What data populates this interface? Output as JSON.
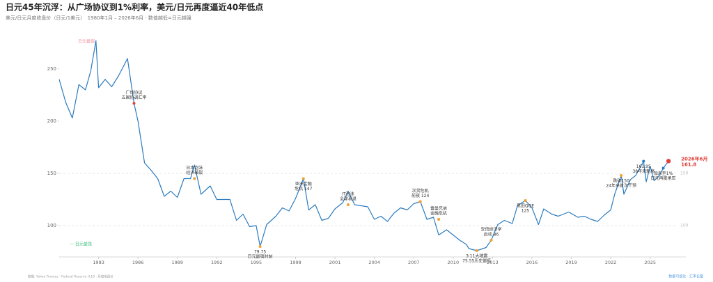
{
  "chart_data": {
    "type": "line",
    "title": "日元45年沉浮：从广场协议到1%利率，美元/日元再度逼近40年低点",
    "subtitle": "美元/日元月度收盘价（日元/1美元）　1980年1月 – 2026年6月 · 数值越低=日元越强",
    "x": [
      1980.0,
      1980.5,
      1981.0,
      1981.5,
      1982.0,
      1982.4,
      1982.8,
      1983.0,
      1983.5,
      1984.0,
      1984.5,
      1985.0,
      1985.2,
      1985.7,
      1986.0,
      1986.5,
      1987.0,
      1987.5,
      1988.0,
      1988.5,
      1989.0,
      1989.5,
      1990.0,
      1990.3,
      1990.8,
      1991.5,
      1992.0,
      1992.5,
      1993.0,
      1993.5,
      1994.0,
      1994.5,
      1995.0,
      1995.3,
      1995.8,
      1996.5,
      1997.0,
      1997.5,
      1998.0,
      1998.6,
      1999.0,
      1999.5,
      2000.0,
      2000.5,
      2001.0,
      2001.6,
      2002.0,
      2002.5,
      2003.0,
      2003.5,
      2004.0,
      2004.5,
      2005.0,
      2005.5,
      2006.0,
      2006.5,
      2007.0,
      2007.5,
      2008.0,
      2008.5,
      2008.9,
      2009.5,
      2010.0,
      2010.5,
      2011.0,
      2011.2,
      2011.8,
      2012.5,
      2012.9,
      2013.4,
      2013.9,
      2014.5,
      2014.9,
      2015.5,
      2016.0,
      2016.5,
      2016.9,
      2017.5,
      2018.0,
      2018.8,
      2019.5,
      2020.0,
      2020.5,
      2021.0,
      2021.5,
      2022.0,
      2022.3,
      2022.8,
      2023.0,
      2023.5,
      2023.9,
      2024.5,
      2024.7,
      2025.0,
      2025.3,
      2025.7,
      2026.0,
      2026.4
    ],
    "series": [
      {
        "name": "美元/日元",
        "color": "#2b7bbf",
        "values": [
          240,
          218,
          203,
          235,
          230,
          248,
          277,
          232,
          240,
          233,
          243,
          255,
          260,
          217,
          200,
          160,
          153,
          145,
          128,
          133,
          127,
          145,
          145,
          158,
          130,
          138,
          125,
          125,
          125,
          105,
          111,
          99,
          100,
          80,
          101,
          109,
          117,
          114,
          126,
          145,
          115,
          120,
          105,
          107,
          116,
          122,
          133,
          120,
          119,
          118,
          106,
          109,
          104,
          112,
          117,
          115,
          121,
          123,
          106,
          108,
          91,
          96,
          91,
          86,
          82,
          78,
          76,
          79,
          86,
          101,
          105,
          102,
          119,
          124,
          117,
          101,
          116,
          111,
          109,
          113,
          108,
          109,
          106,
          104,
          110,
          115,
          130,
          148,
          130,
          144,
          148,
          161.7,
          142,
          157,
          143,
          148,
          155,
          161.8
        ]
      }
    ],
    "xlim": [
      1980,
      2026.5
    ],
    "xticks": [
      1983,
      1986,
      1989,
      1992,
      1995,
      1998,
      2001,
      2004,
      2007,
      2010,
      2013,
      2016,
      2019,
      2022,
      2025
    ],
    "ylim": [
      70,
      280
    ],
    "yticks": [
      100,
      150,
      200,
      250
    ],
    "grid": false,
    "reference_lines": [
      {
        "value": 150,
        "label": "150"
      },
      {
        "value": 100,
        "label": "100"
      }
    ],
    "annotations": [
      {
        "x": 1985.7,
        "y": 217,
        "color": "#e0413a",
        "placement": "above",
        "text": [
          "广场协议",
          "五国协调汇率"
        ]
      },
      {
        "x": 1990.3,
        "y": 145,
        "color": "#f0a030",
        "placement": "above",
        "text": [
          "日本泡沫",
          "经济破裂"
        ]
      },
      {
        "x": 1995.3,
        "y": 80,
        "color": "#f0a030",
        "placement": "below",
        "text": [
          "79.75",
          "日元最强时刻"
        ]
      },
      {
        "x": 1998.6,
        "y": 145,
        "color": "#f0a030",
        "placement": "below",
        "text": [
          "亚洲金融",
          "危机 147"
        ]
      },
      {
        "x": 2002.0,
        "y": 120,
        "color": "#f0a030",
        "placement": "above",
        "text": [
          "IT泡沫",
          "全球衰退"
        ]
      },
      {
        "x": 2007.5,
        "y": 123,
        "color": "#f0a030",
        "placement": "above",
        "text": [
          "次贷危机",
          "前夜 124"
        ]
      },
      {
        "x": 2008.9,
        "y": 106,
        "color": "#f0a030",
        "placement": "above",
        "text": [
          "雷曼兄弟",
          "金融危机"
        ]
      },
      {
        "x": 2011.8,
        "y": 76,
        "color": "#f0a030",
        "placement": "below",
        "text": [
          "3·11大地震",
          "75.55历史最低"
        ]
      },
      {
        "x": 2012.9,
        "y": 86,
        "color": "#f0a030",
        "placement": "above",
        "text": [
          "安倍经济学",
          "启动 86"
        ]
      },
      {
        "x": 2015.5,
        "y": 124,
        "color": "#f0a030",
        "placement": "below",
        "text": [
          "黑田QQE",
          "125"
        ]
      },
      {
        "x": 2022.8,
        "y": 148,
        "color": "#f0a030",
        "placement": "below",
        "text": [
          "跌破150",
          "24年来首次干预"
        ]
      },
      {
        "x": 2024.5,
        "y": 161.7,
        "color": "#2b7bbf",
        "placement": "below",
        "text": [
          "161.95",
          "38年来新高"
        ]
      },
      {
        "x": 2026.0,
        "y": 155,
        "color": "#2b7bbf",
        "placement": "below",
        "text": [
          "加息至1%",
          "日元再度承压"
        ]
      },
      {
        "x": 2026.4,
        "y": 161.8,
        "color": "#e0413a",
        "placement": "right",
        "text": [
          "2026年6月",
          "161.8"
        ]
      }
    ],
    "notes": [
      {
        "text": "日元最弱",
        "color": "#f08a9a"
      },
      {
        "text": "— 日元最强",
        "color": "#3fbf7f"
      }
    ],
    "source": "数据: Yahoo Finance · Federal Reserve H.10 · 月度收盘价",
    "credit": "数据可视化 · 汇率长图"
  }
}
